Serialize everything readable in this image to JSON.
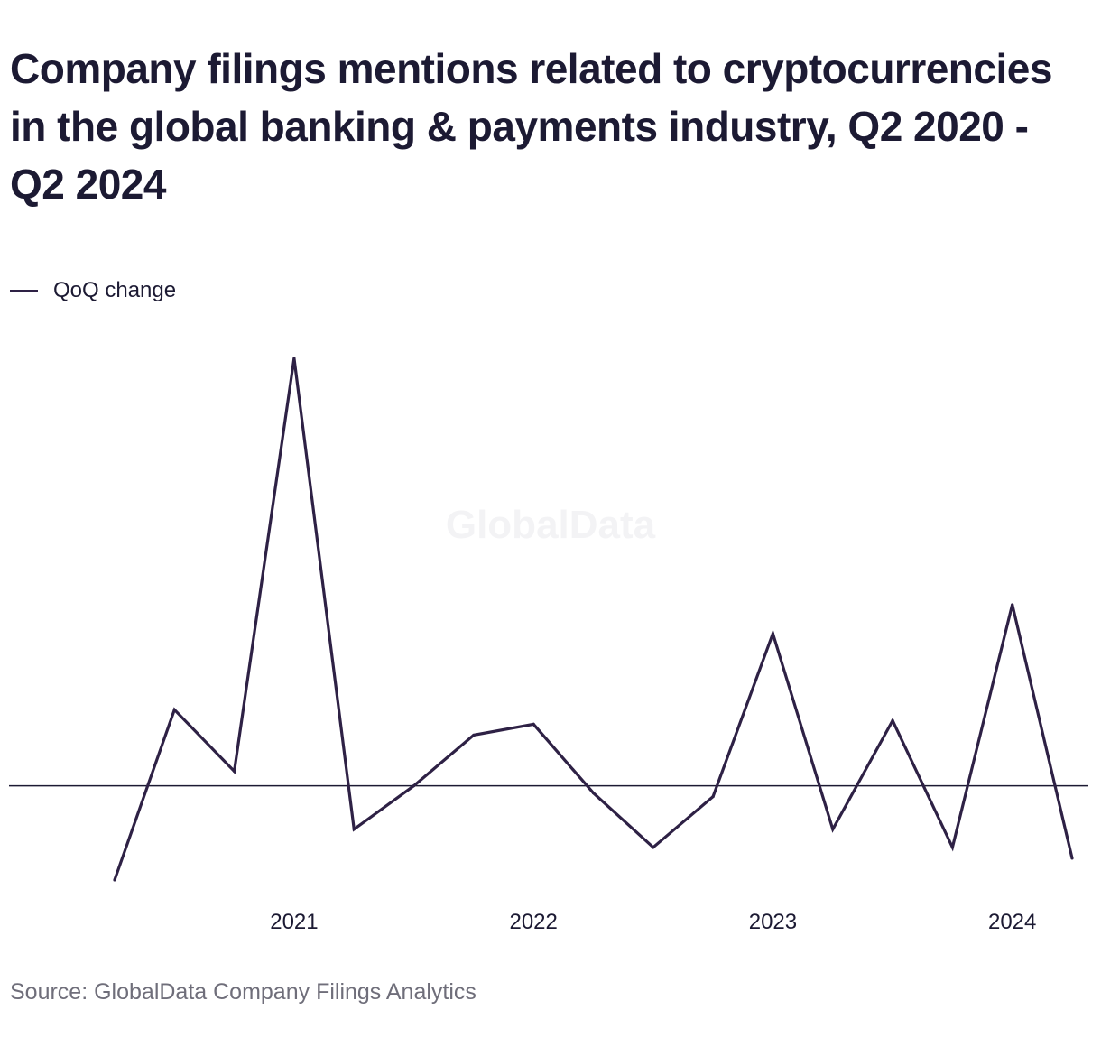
{
  "chart_data": {
    "type": "line",
    "title": "Company filings mentions related to cryptocurrencies in the global banking & payments industry, Q2 2020 - Q2 2024",
    "source": "Source: GlobalData Company Filings Analytics",
    "watermark": "GlobalData",
    "xlabel": "",
    "ylabel": "",
    "x": [
      "Q2 2020",
      "Q3 2020",
      "Q4 2020",
      "Q1 2021",
      "Q2 2021",
      "Q3 2021",
      "Q4 2021",
      "Q1 2022",
      "Q2 2022",
      "Q3 2022",
      "Q4 2022",
      "Q1 2023",
      "Q2 2023",
      "Q3 2023",
      "Q4 2023",
      "Q1 2024",
      "Q2 2024"
    ],
    "x_tick_labels": [
      {
        "label": "2021",
        "at": "Q1 2021"
      },
      {
        "label": "2022",
        "at": "Q1 2022"
      },
      {
        "label": "2023",
        "at": "Q1 2023"
      },
      {
        "label": "2024",
        "at": "Q1 2024"
      }
    ],
    "series": [
      {
        "name": "QoQ change",
        "color": "#2e2145",
        "values": [
          -26,
          21,
          4,
          118,
          -12,
          0,
          14,
          17,
          -2,
          -17,
          -3,
          42,
          -12,
          18,
          -17,
          50,
          -20
        ]
      }
    ],
    "ylim": [
      -30,
      120
    ],
    "zero_line": true,
    "grid": false,
    "y_axis_labels_shown": false,
    "legend_position": "top-left"
  }
}
